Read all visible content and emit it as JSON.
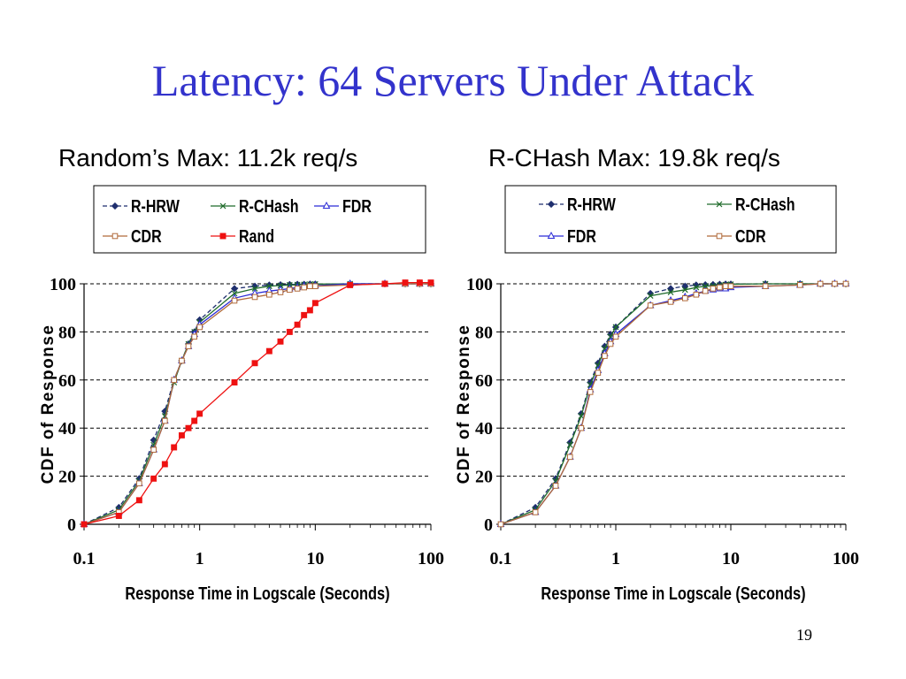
{
  "slide": {
    "title": "Latency: 64 Servers Under Attack",
    "page_number": "19"
  },
  "colors": {
    "title": "#3333cc",
    "R-HRW": "#1f2f6e",
    "R-CHash": "#1f6b2a",
    "FDR": "#2b2bd6",
    "CDR": "#b06a3a",
    "Rand": "#ee1111"
  },
  "chart_data": [
    {
      "type": "line",
      "title": "Random’s Max: 11.2k req/s",
      "xlabel": "Response Time in Logscale (Seconds)",
      "ylabel": "CDF of Response",
      "xscale": "log",
      "xlim": [
        0.1,
        100
      ],
      "ylim": [
        0,
        100
      ],
      "xticks": [
        "0.1",
        "1",
        "10",
        "100"
      ],
      "yticks": [
        "0",
        "20",
        "40",
        "60",
        "80",
        "100"
      ],
      "grid": "horizontal dashed",
      "legend": "top",
      "series": [
        {
          "name": "R-HRW",
          "x": [
            0.1,
            0.2,
            0.3,
            0.4,
            0.5,
            0.6,
            0.7,
            0.8,
            0.9,
            1,
            2,
            3,
            4,
            5,
            6,
            7,
            8,
            9,
            10,
            20,
            40,
            60,
            80,
            100
          ],
          "y": [
            0,
            7,
            19,
            35,
            47,
            60,
            68,
            75,
            80,
            85,
            98,
            99,
            99.5,
            99.6,
            99.7,
            99.8,
            99.8,
            99.9,
            99.9,
            100,
            100,
            100,
            100,
            100
          ]
        },
        {
          "name": "R-CHash",
          "x": [
            0.1,
            0.2,
            0.3,
            0.4,
            0.5,
            0.6,
            0.7,
            0.8,
            0.9,
            1,
            2,
            3,
            4,
            5,
            6,
            7,
            8,
            9,
            10,
            20,
            40,
            60,
            80,
            100
          ],
          "y": [
            0,
            6,
            18,
            33,
            45,
            59,
            68,
            75,
            80,
            84,
            96,
            98,
            99,
            99.3,
            99.5,
            99.6,
            99.7,
            99.8,
            99.9,
            100,
            100,
            100,
            100,
            100
          ]
        },
        {
          "name": "FDR",
          "x": [
            0.1,
            0.2,
            0.3,
            0.4,
            0.5,
            0.6,
            0.7,
            0.8,
            0.9,
            1,
            2,
            3,
            4,
            5,
            6,
            7,
            8,
            9,
            10,
            20,
            40,
            60,
            80,
            100
          ],
          "y": [
            0,
            5,
            17,
            31,
            43,
            60,
            68,
            74,
            79,
            83,
            94,
            96,
            97,
            97.5,
            98,
            98.5,
            99,
            99,
            99.2,
            100,
            100,
            100,
            100,
            100
          ]
        },
        {
          "name": "CDR",
          "x": [
            0.1,
            0.2,
            0.3,
            0.4,
            0.5,
            0.6,
            0.7,
            0.8,
            0.9,
            1,
            2,
            3,
            4,
            5,
            6,
            7,
            8,
            9,
            10,
            20,
            40,
            60,
            80,
            100
          ],
          "y": [
            0,
            5,
            17,
            31,
            43,
            60,
            68,
            74,
            78,
            82,
            93,
            94.5,
            95.5,
            96.5,
            97.5,
            98,
            98.5,
            99,
            99,
            99.5,
            100,
            100,
            100,
            100
          ]
        },
        {
          "name": "Rand",
          "x": [
            0.1,
            0.2,
            0.3,
            0.4,
            0.5,
            0.6,
            0.7,
            0.8,
            0.9,
            1,
            2,
            3,
            4,
            5,
            6,
            7,
            8,
            9,
            10,
            20,
            40,
            60,
            80,
            100
          ],
          "y": [
            0,
            3.5,
            10,
            19,
            25,
            32,
            37,
            40,
            43,
            46,
            59,
            67,
            72,
            76,
            80,
            83,
            87,
            89,
            92,
            99.5,
            100,
            100.5,
            100.5,
            100.5
          ]
        }
      ]
    },
    {
      "type": "line",
      "title": "R-CHash Max: 19.8k req/s",
      "xlabel": "Response Time in Logscale (Seconds)",
      "ylabel": "CDF of Response",
      "xscale": "log",
      "xlim": [
        0.1,
        100
      ],
      "ylim": [
        0,
        100
      ],
      "xticks": [
        "0.1",
        "1",
        "10",
        "100"
      ],
      "yticks": [
        "0",
        "20",
        "40",
        "60",
        "80",
        "100"
      ],
      "grid": "horizontal dashed",
      "legend": "top",
      "series": [
        {
          "name": "R-HRW",
          "x": [
            0.1,
            0.2,
            0.3,
            0.4,
            0.5,
            0.6,
            0.7,
            0.8,
            0.9,
            1,
            2,
            3,
            4,
            5,
            6,
            7,
            8,
            9,
            10,
            20,
            40,
            60,
            80,
            100
          ],
          "y": [
            0,
            7,
            19,
            34,
            46,
            59,
            67,
            74,
            79,
            82,
            96,
            98,
            99,
            99.5,
            99.6,
            99.7,
            99.8,
            99.9,
            99.9,
            100,
            100,
            100,
            100,
            100
          ]
        },
        {
          "name": "R-CHash",
          "x": [
            0.1,
            0.2,
            0.3,
            0.4,
            0.5,
            0.6,
            0.7,
            0.8,
            0.9,
            1,
            2,
            3,
            4,
            5,
            6,
            7,
            8,
            9,
            10,
            20,
            40,
            60,
            80,
            100
          ],
          "y": [
            0,
            6,
            18,
            33,
            45,
            58,
            66,
            73,
            78,
            82,
            95,
            96.5,
            97.5,
            98.5,
            99,
            99.2,
            99.4,
            99.6,
            99.8,
            100,
            100,
            100,
            100,
            100
          ]
        },
        {
          "name": "FDR",
          "x": [
            0.1,
            0.2,
            0.3,
            0.4,
            0.5,
            0.6,
            0.7,
            0.8,
            0.9,
            1,
            2,
            3,
            4,
            5,
            6,
            7,
            8,
            9,
            10,
            20,
            40,
            60,
            80,
            100
          ],
          "y": [
            0,
            5,
            16,
            28,
            40,
            56,
            64,
            71,
            76,
            79,
            91,
            93,
            94.5,
            96,
            97,
            97.5,
            98,
            98,
            98.5,
            99,
            99.5,
            100,
            100,
            100
          ]
        },
        {
          "name": "CDR",
          "x": [
            0.1,
            0.2,
            0.3,
            0.4,
            0.5,
            0.6,
            0.7,
            0.8,
            0.9,
            1,
            2,
            3,
            4,
            5,
            6,
            7,
            8,
            9,
            10,
            20,
            40,
            60,
            80,
            100
          ],
          "y": [
            0,
            5,
            16,
            28,
            40,
            55,
            63,
            70,
            75,
            78,
            91,
            92.5,
            94,
            95.5,
            97,
            98,
            98.5,
            99,
            99,
            99,
            99.5,
            100,
            100,
            100
          ]
        }
      ]
    }
  ]
}
